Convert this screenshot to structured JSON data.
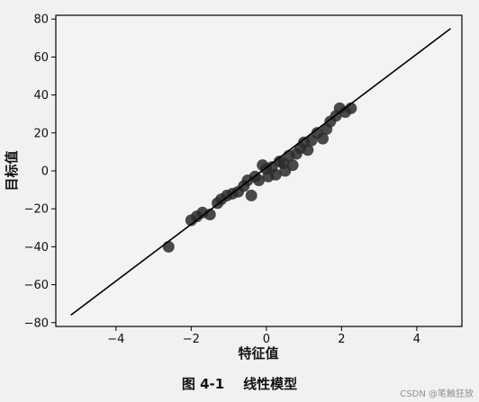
{
  "chart_data": {
    "type": "scatter",
    "title": "",
    "xlabel": "特征值",
    "ylabel": "目标值",
    "xlim": [
      -5.6,
      5.2
    ],
    "ylim": [
      -82,
      82
    ],
    "xticks": [
      -4,
      -2,
      0,
      2,
      4
    ],
    "yticks": [
      -80,
      -60,
      -40,
      -20,
      0,
      20,
      40,
      60,
      80
    ],
    "xtick_labels": [
      "−4",
      "−2",
      "0",
      "2",
      "4"
    ],
    "ytick_labels": [
      "−80",
      "−60",
      "−40",
      "−20",
      "0",
      "20",
      "40",
      "60",
      "80"
    ],
    "grid": false,
    "legend": "none",
    "colors": {
      "points": "#2a2a2a",
      "line": "#000000",
      "background": "#f1f1ef"
    },
    "series": [
      {
        "type": "scatter",
        "points": [
          {
            "x": -2.6,
            "y": -40
          },
          {
            "x": -2.0,
            "y": -26
          },
          {
            "x": -1.85,
            "y": -24
          },
          {
            "x": -1.7,
            "y": -22
          },
          {
            "x": -1.5,
            "y": -23
          },
          {
            "x": -1.3,
            "y": -17
          },
          {
            "x": -1.2,
            "y": -15
          },
          {
            "x": -1.05,
            "y": -13
          },
          {
            "x": -0.9,
            "y": -12
          },
          {
            "x": -0.75,
            "y": -11
          },
          {
            "x": -0.6,
            "y": -8
          },
          {
            "x": -0.5,
            "y": -5
          },
          {
            "x": -0.4,
            "y": -13
          },
          {
            "x": -0.3,
            "y": -3
          },
          {
            "x": -0.2,
            "y": -5
          },
          {
            "x": -0.1,
            "y": 3
          },
          {
            "x": 0.0,
            "y": 1
          },
          {
            "x": 0.05,
            "y": -3
          },
          {
            "x": 0.15,
            "y": 2
          },
          {
            "x": 0.25,
            "y": -2
          },
          {
            "x": 0.35,
            "y": 5
          },
          {
            "x": 0.45,
            "y": 4
          },
          {
            "x": 0.5,
            "y": 0
          },
          {
            "x": 0.6,
            "y": 8
          },
          {
            "x": 0.7,
            "y": 3
          },
          {
            "x": 0.8,
            "y": 9
          },
          {
            "x": 0.9,
            "y": 12
          },
          {
            "x": 1.0,
            "y": 15
          },
          {
            "x": 1.1,
            "y": 11
          },
          {
            "x": 1.2,
            "y": 16
          },
          {
            "x": 1.35,
            "y": 20
          },
          {
            "x": 1.5,
            "y": 17
          },
          {
            "x": 1.6,
            "y": 22
          },
          {
            "x": 1.7,
            "y": 26
          },
          {
            "x": 1.85,
            "y": 29
          },
          {
            "x": 1.95,
            "y": 33
          },
          {
            "x": 2.1,
            "y": 31
          },
          {
            "x": 2.25,
            "y": 33
          }
        ]
      },
      {
        "type": "line",
        "points": [
          {
            "x": -5.2,
            "y": -76
          },
          {
            "x": 4.9,
            "y": 75
          }
        ]
      }
    ]
  },
  "caption": "图 4-1    线性模型",
  "watermark": "CSDN @笔触狂放"
}
